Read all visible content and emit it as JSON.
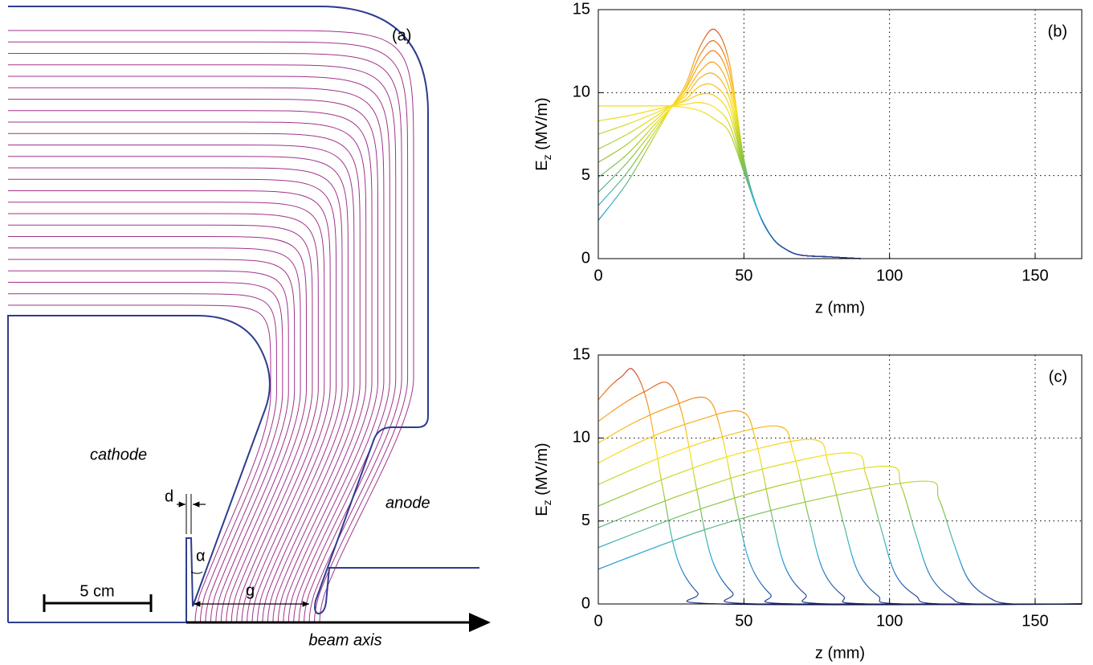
{
  "diagram": {
    "label": "(a)",
    "cathode": "cathode",
    "anode": "anode",
    "gap_d": "d",
    "angle": "α",
    "gap_g": "g",
    "scale": "5 cm",
    "axis": "beam axis"
  },
  "chart_data": [
    {
      "type": "line",
      "label": "(b)",
      "xlabel": "z (mm)",
      "ylabel": [
        "E",
        "z",
        " (MV/m)"
      ],
      "xlim": [
        0,
        166
      ],
      "ylim": [
        0,
        15
      ],
      "xticks": [
        0,
        50,
        100,
        150
      ],
      "yticks": [
        0,
        5,
        10,
        15
      ],
      "grid": true,
      "colormap": [
        "#2b3990",
        "#27aae1",
        "#8dc63f",
        "#f7e11b",
        "#f7941d",
        "#c1272d"
      ],
      "x": [
        0,
        10,
        20,
        25,
        30,
        35,
        40,
        45,
        50,
        55,
        60,
        65,
        70,
        80,
        90
      ],
      "series": [
        {
          "values": [
            9.2,
            9.2,
            9.2,
            9.2,
            9.1,
            8.9,
            8.4,
            7.6,
            5.2,
            2.8,
            1.2,
            0.5,
            0.2,
            0.1,
            0
          ]
        },
        {
          "values": [
            8.3,
            8.6,
            9.0,
            9.2,
            9.3,
            9.4,
            9.1,
            8.1,
            5.3,
            2.8,
            1.2,
            0.5,
            0.2,
            0.1,
            0
          ]
        },
        {
          "values": [
            7.5,
            8.1,
            8.8,
            9.2,
            9.5,
            9.9,
            9.8,
            8.7,
            5.4,
            2.8,
            1.2,
            0.5,
            0.2,
            0.1,
            0
          ]
        },
        {
          "values": [
            6.6,
            7.5,
            8.6,
            9.2,
            9.6,
            10.4,
            10.4,
            9.2,
            5.5,
            2.8,
            1.2,
            0.5,
            0.2,
            0.1,
            0
          ]
        },
        {
          "values": [
            5.8,
            6.9,
            8.4,
            9.2,
            9.8,
            10.9,
            11.1,
            9.7,
            5.6,
            2.8,
            1.2,
            0.5,
            0.2,
            0.1,
            0
          ]
        },
        {
          "values": [
            4.9,
            6.3,
            8.2,
            9.1,
            10.0,
            11.3,
            11.8,
            10.2,
            5.7,
            2.8,
            1.2,
            0.5,
            0.2,
            0.1,
            0
          ]
        },
        {
          "values": [
            4.0,
            5.8,
            8.0,
            9.1,
            10.2,
            11.8,
            12.5,
            10.8,
            5.8,
            2.8,
            1.2,
            0.5,
            0.2,
            0.1,
            0
          ]
        },
        {
          "values": [
            3.2,
            5.2,
            7.8,
            9.1,
            10.3,
            12.3,
            13.1,
            11.3,
            5.9,
            2.8,
            1.2,
            0.5,
            0.2,
            0.1,
            0
          ]
        },
        {
          "values": [
            2.3,
            4.6,
            7.6,
            9.1,
            10.5,
            12.8,
            13.8,
            11.8,
            6.0,
            2.8,
            1.2,
            0.5,
            0.2,
            0.1,
            0
          ]
        }
      ]
    },
    {
      "type": "line",
      "label": "(c)",
      "xlabel": "z (mm)",
      "ylabel": [
        "E",
        "z",
        " (MV/m)"
      ],
      "xlim": [
        0,
        166
      ],
      "ylim": [
        0,
        15
      ],
      "xticks": [
        0,
        50,
        100,
        150
      ],
      "yticks": [
        0,
        5,
        10,
        15
      ],
      "grid": true,
      "colormap": [
        "#2b3990",
        "#27aae1",
        "#8dc63f",
        "#f7e11b",
        "#f7941d",
        "#c1272d"
      ],
      "series": [
        {
          "x": [
            0,
            4,
            8,
            12,
            17,
            22,
            27,
            34,
            42,
            166
          ],
          "values": [
            12.3,
            13.1,
            13.7,
            14.1,
            12.0,
            7.1,
            2.8,
            0.7,
            0,
            0
          ]
        },
        {
          "x": [
            0,
            8,
            16,
            24,
            29,
            34,
            39,
            46,
            54,
            166
          ],
          "values": [
            11.0,
            12.0,
            12.8,
            13.3,
            11.3,
            6.7,
            2.7,
            0.7,
            0,
            0
          ]
        },
        {
          "x": [
            0,
            12,
            25,
            37,
            42,
            47,
            52,
            59,
            67,
            166
          ],
          "values": [
            9.7,
            10.9,
            11.9,
            12.4,
            10.5,
            6.2,
            2.5,
            0.6,
            0,
            0
          ]
        },
        {
          "x": [
            0,
            16,
            33,
            49,
            54,
            59,
            64,
            71,
            79,
            166
          ],
          "values": [
            8.5,
            9.9,
            11.0,
            11.6,
            9.9,
            5.8,
            2.3,
            0.6,
            0,
            0
          ]
        },
        {
          "x": [
            0,
            21,
            41,
            62,
            67,
            72,
            77,
            84,
            92,
            166
          ],
          "values": [
            7.2,
            8.8,
            10.0,
            10.7,
            9.1,
            5.4,
            2.1,
            0.5,
            0,
            0
          ]
        },
        {
          "x": [
            0,
            25,
            49,
            74,
            79,
            84,
            89,
            96,
            104,
            166
          ],
          "values": [
            5.9,
            7.7,
            9.1,
            9.9,
            8.4,
            5.0,
            2.0,
            0.5,
            0,
            0
          ]
        },
        {
          "x": [
            0,
            29,
            58,
            87,
            92,
            97,
            102,
            109,
            117,
            166
          ],
          "values": [
            4.6,
            6.6,
            8.2,
            9.1,
            7.7,
            4.6,
            1.8,
            0.5,
            0,
            0
          ]
        },
        {
          "x": [
            0,
            33,
            66,
            99,
            104,
            109,
            114,
            121,
            129,
            166
          ],
          "values": [
            3.4,
            5.6,
            7.3,
            8.3,
            7.1,
            4.2,
            1.7,
            0.4,
            0,
            0
          ]
        },
        {
          "x": [
            0,
            37,
            75,
            112,
            117,
            122,
            127,
            134,
            142,
            166
          ],
          "values": [
            2.1,
            4.5,
            6.3,
            7.4,
            6.3,
            3.7,
            1.5,
            0.4,
            0,
            0
          ]
        }
      ]
    }
  ]
}
